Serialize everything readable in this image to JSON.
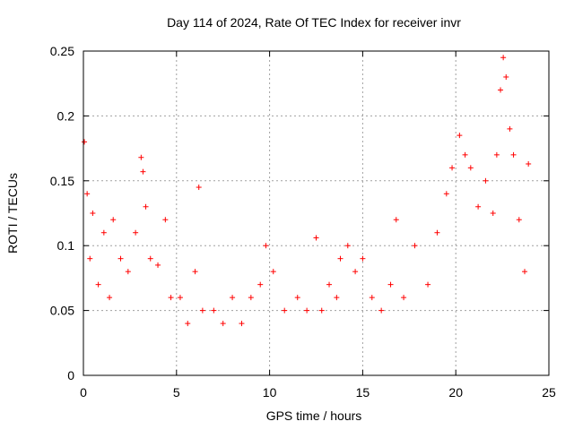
{
  "chart_data": {
    "type": "scatter",
    "title": "Day 114 of 2024, Rate Of TEC Index for receiver invr",
    "xlabel": "GPS time / hours",
    "ylabel": "ROTI / TECUs",
    "xlim": [
      0,
      25
    ],
    "ylim": [
      0,
      0.25
    ],
    "xticks": [
      "0",
      "5",
      "10",
      "15",
      "20",
      "25"
    ],
    "yticks": [
      "0",
      "0.05",
      "0.1",
      "0.15",
      "0.2",
      "0.25"
    ],
    "grid": true,
    "marker": "+",
    "colors": {
      "series": "#ff0000",
      "grid": "#a0a0a0",
      "axis": "#000000"
    },
    "series": [
      {
        "x": [
          0.05,
          0.2,
          0.35,
          0.5,
          0.8,
          1.1,
          1.4,
          1.6,
          2.0,
          2.4,
          2.8,
          3.1,
          3.2,
          3.35,
          3.6,
          4.0,
          4.4,
          4.7,
          5.2,
          5.6,
          6.0,
          6.2,
          6.4,
          7.0,
          7.5,
          8.0,
          8.5,
          9.0,
          9.5,
          9.8,
          10.2,
          10.8,
          11.5,
          12.0,
          12.5,
          12.8,
          13.2,
          13.6,
          13.8,
          14.2,
          14.6,
          15.0,
          15.5,
          16.0,
          16.5,
          16.8,
          17.2,
          17.8,
          18.5,
          19.0,
          19.5,
          19.8,
          20.2,
          20.5,
          20.8,
          21.2,
          21.6,
          22.0,
          22.2,
          22.4,
          22.55,
          22.7,
          22.9,
          23.1,
          23.4,
          23.7,
          23.9
        ],
        "y": [
          0.18,
          0.14,
          0.09,
          0.125,
          0.07,
          0.11,
          0.06,
          0.12,
          0.09,
          0.08,
          0.11,
          0.168,
          0.157,
          0.13,
          0.09,
          0.085,
          0.12,
          0.06,
          0.06,
          0.04,
          0.08,
          0.145,
          0.05,
          0.05,
          0.04,
          0.06,
          0.04,
          0.06,
          0.07,
          0.1,
          0.08,
          0.05,
          0.06,
          0.05,
          0.106,
          0.05,
          0.07,
          0.06,
          0.09,
          0.1,
          0.08,
          0.09,
          0.06,
          0.05,
          0.07,
          0.12,
          0.06,
          0.1,
          0.07,
          0.11,
          0.14,
          0.16,
          0.185,
          0.17,
          0.16,
          0.13,
          0.15,
          0.125,
          0.17,
          0.22,
          0.245,
          0.23,
          0.19,
          0.17,
          0.12,
          0.08,
          0.163
        ]
      }
    ]
  }
}
